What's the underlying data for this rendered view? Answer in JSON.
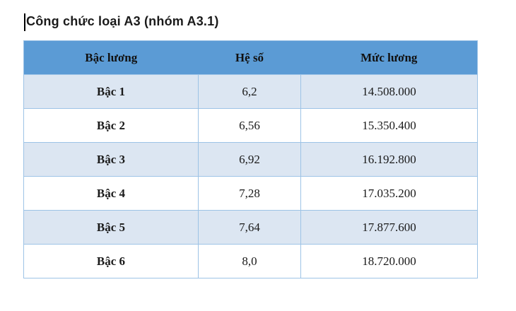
{
  "title": "Công chức loại A3 (nhóm A3.1)",
  "table": {
    "headers": [
      "Bậc lương",
      "Hệ số",
      "Mức lương"
    ],
    "rows": [
      [
        "Bậc 1",
        "6,2",
        "14.508.000"
      ],
      [
        "Bậc 2",
        "6,56",
        "15.350.400"
      ],
      [
        "Bậc 3",
        "6,92",
        "16.192.800"
      ],
      [
        "Bậc 4",
        "7,28",
        "17.035.200"
      ],
      [
        "Bậc 5",
        "7,64",
        "17.877.600"
      ],
      [
        "Bậc 6",
        "8,0",
        "18.720.000"
      ]
    ]
  },
  "colors": {
    "header_bg": "#5b9bd5",
    "band_bg": "#dce6f2",
    "border_color": "#9dc3e6",
    "text_color": "#1a1a1a",
    "title_color": "#1a1a1a",
    "page_bg": "#ffffff"
  }
}
